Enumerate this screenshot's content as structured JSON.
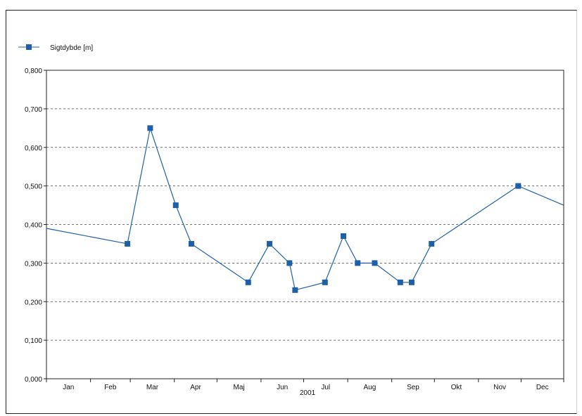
{
  "chart_data": {
    "type": "line",
    "title": "",
    "xlabel": "2001",
    "ylabel": "",
    "ylim": [
      0,
      0.8
    ],
    "yticks": [
      "0,000",
      "0,100",
      "0,200",
      "0,300",
      "0,400",
      "0,500",
      "0,600",
      "0,700",
      "0,800"
    ],
    "months": [
      "Jan",
      "Feb",
      "Mar",
      "Apr",
      "Maj",
      "Jun",
      "Jul",
      "Aug",
      "Sep",
      "Okt",
      "Nov",
      "Dec"
    ],
    "grid": true,
    "legend_position": "top-left",
    "series": [
      {
        "name": "Sigtdybde [m]",
        "color": "#1f5fa8",
        "points": [
          {
            "date": "2001-01-01",
            "y": 0.39,
            "marker": false
          },
          {
            "date": "2001-02-27",
            "y": 0.35,
            "marker": true
          },
          {
            "date": "2001-03-15",
            "y": 0.65,
            "marker": true
          },
          {
            "date": "2001-04-02",
            "y": 0.45,
            "marker": true
          },
          {
            "date": "2001-04-13",
            "y": 0.35,
            "marker": true
          },
          {
            "date": "2001-05-23",
            "y": 0.25,
            "marker": true
          },
          {
            "date": "2001-06-07",
            "y": 0.35,
            "marker": true
          },
          {
            "date": "2001-06-21",
            "y": 0.3,
            "marker": true
          },
          {
            "date": "2001-06-25",
            "y": 0.23,
            "marker": true
          },
          {
            "date": "2001-07-16",
            "y": 0.25,
            "marker": true
          },
          {
            "date": "2001-07-29",
            "y": 0.37,
            "marker": true
          },
          {
            "date": "2001-08-08",
            "y": 0.3,
            "marker": true
          },
          {
            "date": "2001-08-20",
            "y": 0.3,
            "marker": true
          },
          {
            "date": "2001-09-07",
            "y": 0.25,
            "marker": true
          },
          {
            "date": "2001-09-15",
            "y": 0.25,
            "marker": true
          },
          {
            "date": "2001-09-29",
            "y": 0.35,
            "marker": true
          },
          {
            "date": "2001-11-29",
            "y": 0.5,
            "marker": true
          },
          {
            "date": "2001-12-31",
            "y": 0.45,
            "marker": false
          }
        ]
      }
    ]
  }
}
